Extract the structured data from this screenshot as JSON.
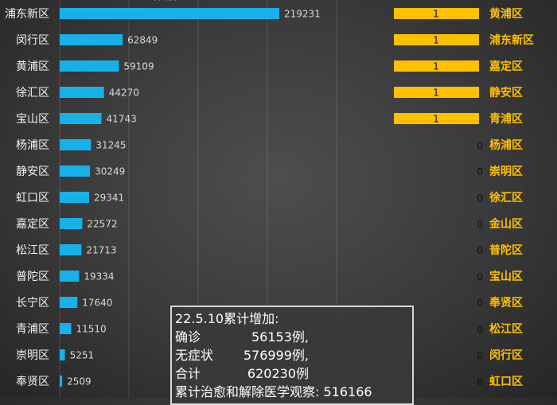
{
  "chart_data": [
    {
      "type": "bar",
      "orientation": "horizontal",
      "title": "",
      "categories": [
        "浦东新区",
        "闵行区",
        "黄浦区",
        "徐汇区",
        "宝山区",
        "杨浦区",
        "静安区",
        "虹口区",
        "嘉定区",
        "松江区",
        "普陀区",
        "长宁区",
        "青浦区",
        "崇明区",
        "奉贤区"
      ],
      "values": [
        219231,
        62849,
        59109,
        44270,
        41743,
        31245,
        30249,
        29341,
        22572,
        21713,
        19334,
        17640,
        11510,
        5251,
        2509
      ],
      "xlim": [
        0,
        230000
      ],
      "grid": true,
      "bar_color": "#17b1ea"
    },
    {
      "type": "bar",
      "orientation": "horizontal",
      "title": "",
      "categories": [
        "黄浦区",
        "浦东新区",
        "嘉定区",
        "静安区",
        "青浦区",
        "杨浦区",
        "崇明区",
        "徐汇区",
        "金山区",
        "普陀区",
        "宝山区",
        "奉贤区",
        "松江区",
        "闵行区",
        "虹口区"
      ],
      "values": [
        1,
        1,
        1,
        1,
        1,
        0,
        0,
        0,
        0,
        0,
        0,
        0,
        0,
        0,
        0
      ],
      "xlim": [
        0,
        1
      ],
      "bar_color": "#ffc000"
    }
  ],
  "summary": {
    "title": "22.5.10累计增加:",
    "confirmed_label": "确诊",
    "confirmed_value": "56153例,",
    "asymptomatic_label": "无症状",
    "asymptomatic_value": "576999例,",
    "total_label": "合计",
    "total_value": "620230例",
    "recovered": "累计治愈和解除医学观察: 516166"
  }
}
